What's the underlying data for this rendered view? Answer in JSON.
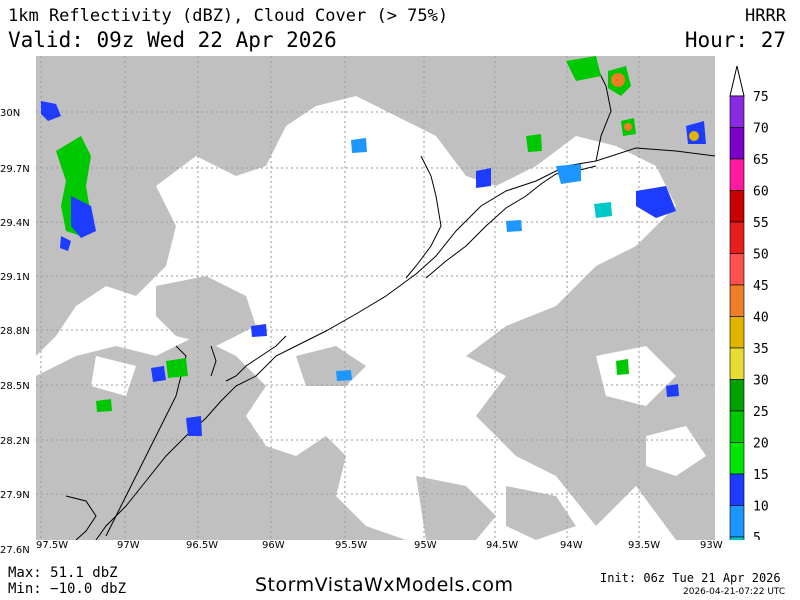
{
  "header": {
    "title": "1km Reflectivity (dBZ), Cloud Cover (> 75%)",
    "model": "HRRR",
    "valid": "Valid: 09z Wed 22 Apr 2026",
    "hour": "Hour: 27"
  },
  "axes": {
    "lon_labels": [
      "97.5W",
      "97W",
      "96.5W",
      "96W",
      "95.5W",
      "95W",
      "94.5W",
      "94W",
      "93.5W",
      "93W"
    ],
    "lat_labels": [
      "30N",
      "29.7N",
      "29.4N",
      "29.1N",
      "28.8N",
      "28.5N",
      "28.2N",
      "27.9N",
      "27.6N"
    ]
  },
  "legend": {
    "levels": [
      {
        "value": "75",
        "color": "#8a2be2"
      },
      {
        "value": "70",
        "color": "#7b00c8"
      },
      {
        "value": "65",
        "color": "#ff1aa0"
      },
      {
        "value": "60",
        "color": "#c80000"
      },
      {
        "value": "55",
        "color": "#e61e1e"
      },
      {
        "value": "50",
        "color": "#ff5050"
      },
      {
        "value": "45",
        "color": "#f07d28"
      },
      {
        "value": "40",
        "color": "#e1b400"
      },
      {
        "value": "35",
        "color": "#e6dc32"
      },
      {
        "value": "30",
        "color": "#00a000"
      },
      {
        "value": "25",
        "color": "#00c800"
      },
      {
        "value": "20",
        "color": "#00e600"
      },
      {
        "value": "15",
        "color": "#1e3cff"
      },
      {
        "value": "10",
        "color": "#1e96ff"
      },
      {
        "value": "5",
        "color": "#00c8c8"
      }
    ]
  },
  "colors": {
    "cloud": "#c0c0c0",
    "grid": "#9a9a9a",
    "coast": "#000000"
  },
  "footer": {
    "max": "Max: 51.1 dbZ",
    "min": "Min: −10.0 dbZ",
    "site": "StormVistaWxModels.com",
    "init": "Init: 06z Tue 21 Apr 2026",
    "stamp": "2026-04-21-07:22 UTC"
  }
}
